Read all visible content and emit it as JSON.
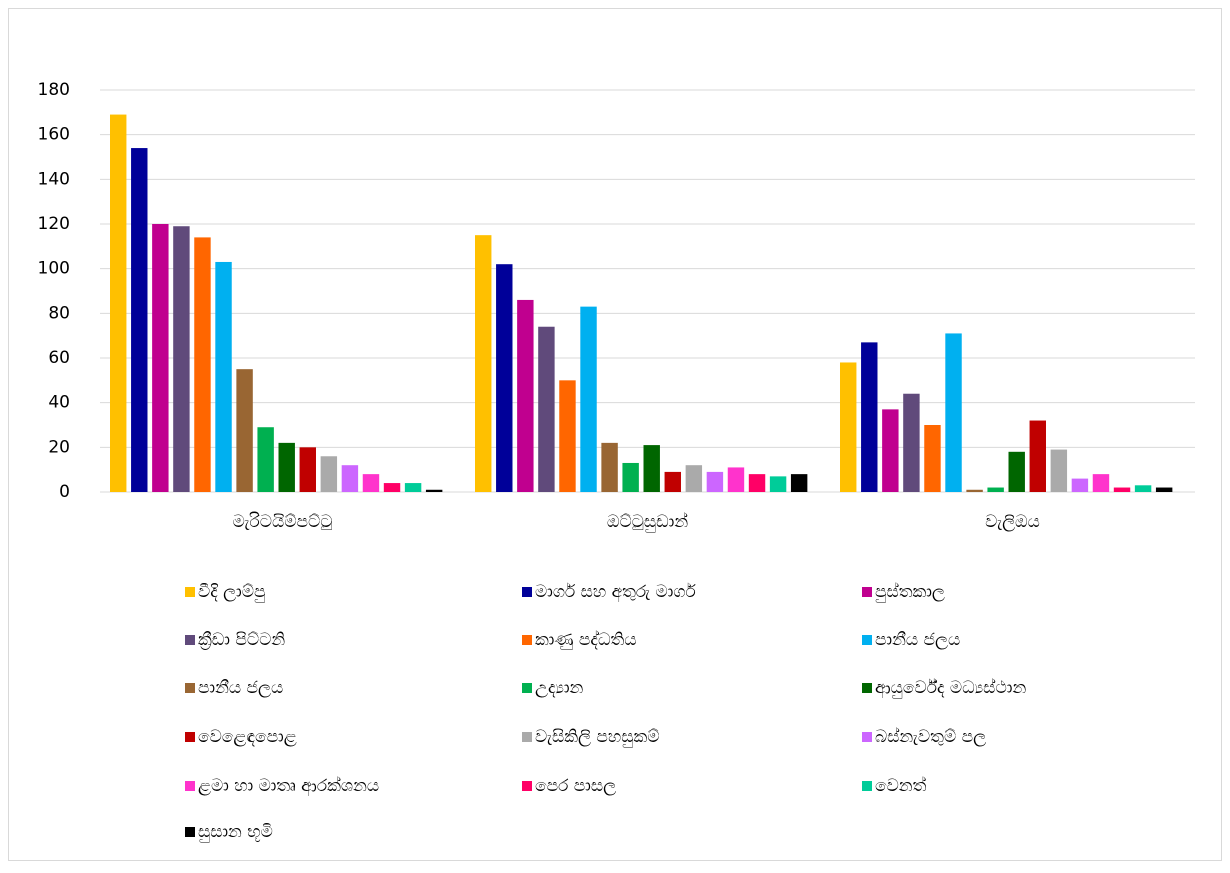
{
  "chart_data": {
    "type": "bar",
    "categories": [
      "මැරිටයිම්පට්ටු",
      "ඔට්ටුසුඩාන්",
      "වැලිඔය"
    ],
    "series": [
      {
        "name": "වීදි ලාම්පු",
        "color": "#FFC000",
        "values": [
          169,
          115,
          58
        ]
      },
      {
        "name": "මාර්ග සහ අතුරු මාර්ග",
        "color": "#000099",
        "values": [
          154,
          102,
          67
        ]
      },
      {
        "name": "පුස්තකාල",
        "color": "#C0008F",
        "values": [
          120,
          86,
          37
        ]
      },
      {
        "name": "ක්‍රීඩා පිට්ටනි",
        "color": "#604A7B",
        "values": [
          119,
          74,
          44
        ]
      },
      {
        "name": " කාණු පද්ධතිය",
        "color": "#FF6600",
        "values": [
          114,
          50,
          30
        ]
      },
      {
        "name": "පානීය ජලය",
        "color": "#00B0F0",
        "values": [
          103,
          83,
          71
        ]
      },
      {
        "name": "පානීය ජලය",
        "color": "#996633",
        "values": [
          55,
          22,
          1
        ]
      },
      {
        "name": "උද්‍යාන",
        "color": "#00B050",
        "values": [
          29,
          13,
          2
        ]
      },
      {
        "name": "ආයුර්වේද මධ්‍යස්ථාන",
        "color": "#006600",
        "values": [
          22,
          21,
          18
        ]
      },
      {
        "name": "වෙළෙඳපොළ",
        "color": "#C00000",
        "values": [
          20,
          9,
          32
        ]
      },
      {
        "name": " වැසිකිලි පහසුකම්",
        "color": "#AAAAAA",
        "values": [
          16,
          12,
          19
        ]
      },
      {
        "name": "බස්නැවතුම් පල",
        "color": "#CC66FF",
        "values": [
          12,
          9,
          6
        ]
      },
      {
        "name": "ළමා හා මාතෘ ආරක්ශනය",
        "color": "#FF33CC",
        "values": [
          8,
          11,
          8
        ]
      },
      {
        "name": "පෙර පාසල",
        "color": "#FF0066",
        "values": [
          4,
          8,
          2
        ]
      },
      {
        "name": "වෙනත්",
        "color": "#00CC99",
        "values": [
          4,
          7,
          3
        ]
      },
      {
        "name": "සුසාන භූමි",
        "color": "#000000",
        "values": [
          1,
          8,
          2
        ]
      }
    ],
    "ylim": [
      0,
      180
    ],
    "yticks": [
      0,
      20,
      40,
      60,
      80,
      100,
      120,
      140,
      160,
      180
    ],
    "grid": true,
    "legend": "bottom"
  }
}
